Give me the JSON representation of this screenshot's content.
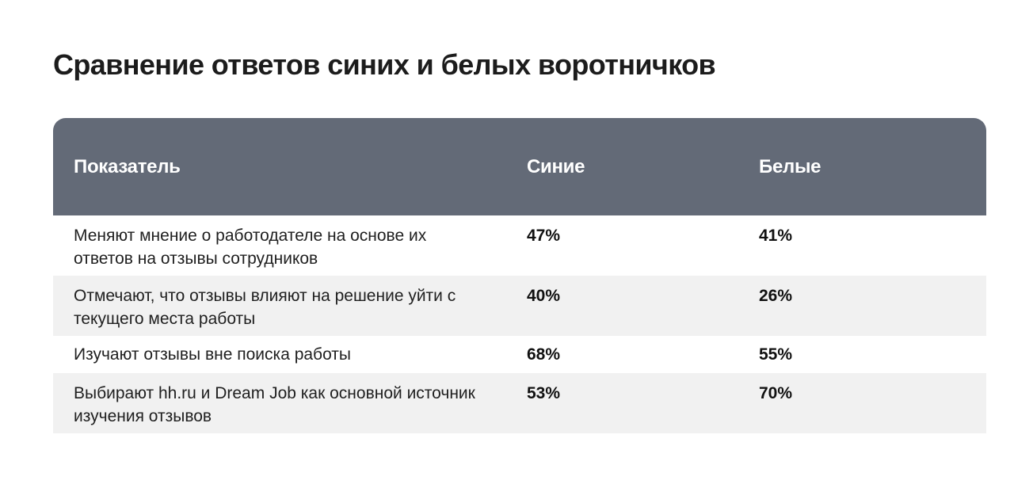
{
  "title": "Сравнение ответов синих и белых воротничков",
  "table": {
    "headers": {
      "indicator": "Показатель",
      "blue": "Синие",
      "white": "Белые"
    },
    "rows": [
      {
        "label": "Меняют мнение о работодателе на основе их ответов на отзывы сотрудников",
        "blue": "47%",
        "white": "41%"
      },
      {
        "label": "Отмечают, что отзывы влияют на решение уйти с текущего места работы",
        "blue": "40%",
        "white": "26%"
      },
      {
        "label": "Изучают отзывы вне поиска работы",
        "blue": "68%",
        "white": "55%"
      },
      {
        "label": "Выбирают hh.ru и Dream Job как основной источник изучения отзывов",
        "blue": "53%",
        "white": "70%"
      }
    ]
  }
}
